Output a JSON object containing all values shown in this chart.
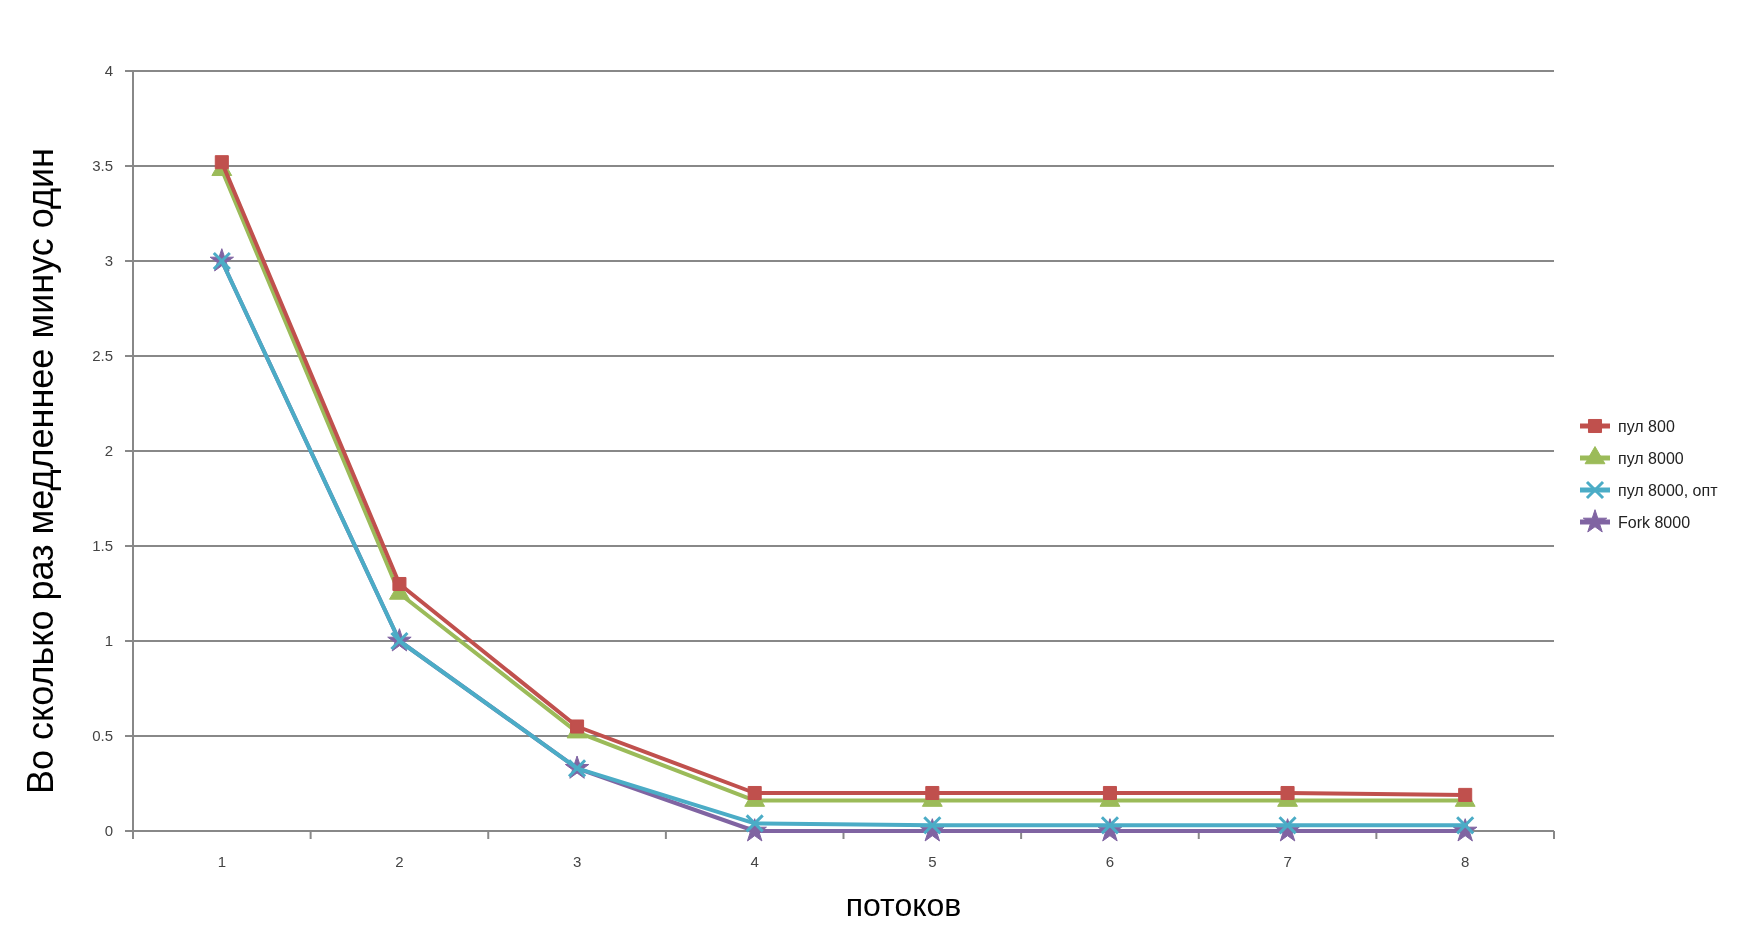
{
  "chart_data": {
    "type": "line",
    "xlabel": "потоков",
    "ylabel": "Во сколько раз медленнее минус один",
    "categories": [
      "1",
      "2",
      "3",
      "4",
      "5",
      "6",
      "7",
      "8"
    ],
    "series": [
      {
        "name": "пул 800",
        "color": "#c0504d",
        "marker": "square",
        "values": [
          3.52,
          1.3,
          0.55,
          0.2,
          0.2,
          0.2,
          0.2,
          0.19
        ]
      },
      {
        "name": "пул 8000",
        "color": "#9bbb59",
        "marker": "triangle",
        "values": [
          3.48,
          1.25,
          0.52,
          0.16,
          0.16,
          0.16,
          0.16,
          0.16
        ]
      },
      {
        "name": "пул 8000, опт",
        "color": "#4bacc6",
        "marker": "cross",
        "values": [
          3.0,
          1.0,
          0.33,
          0.04,
          0.03,
          0.03,
          0.03,
          0.03
        ]
      },
      {
        "name": "Fork 8000",
        "color": "#8064a2",
        "marker": "star",
        "values": [
          3.0,
          1.0,
          0.33,
          0.0,
          0.0,
          0.0,
          0.0,
          0.0
        ]
      }
    ],
    "ylim": [
      0,
      4
    ],
    "yticks": [
      0,
      0.5,
      1,
      1.5,
      2,
      2.5,
      3,
      3.5,
      4
    ],
    "grid": "y",
    "legend": "right"
  }
}
